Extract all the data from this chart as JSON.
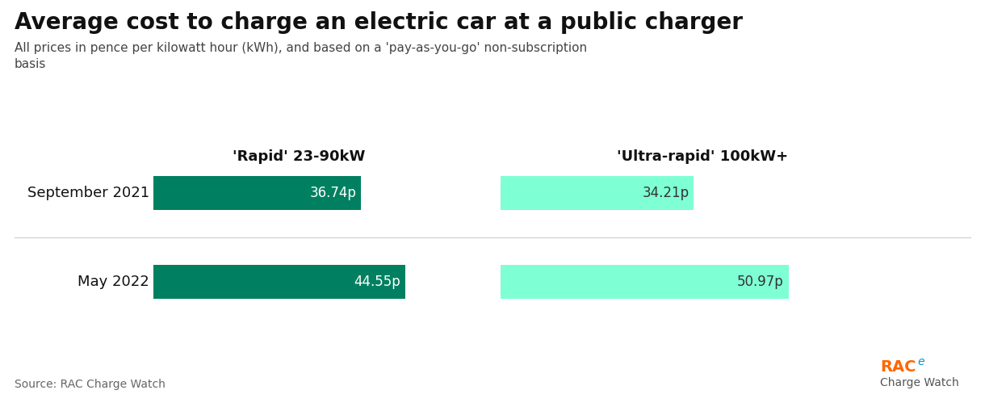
{
  "title": "Average cost to charge an electric car at a public charger",
  "subtitle": "All prices in pence per kilowatt hour (kWh), and based on a 'pay-as-you-go' non-subscription\nbasis",
  "source": "Source: RAC Charge Watch",
  "col_headers": [
    "'Rapid' 23-90kW",
    "'Ultra-rapid' 100kW+"
  ],
  "row_labels": [
    "September 2021",
    "May 2022"
  ],
  "rapid_values": [
    36.74,
    44.55
  ],
  "ultra_values": [
    34.21,
    50.97
  ],
  "rapid_color": "#008060",
  "ultra_color": "#7FFFD4",
  "bar_label_color_rapid": "#ffffff",
  "bar_label_color_ultra": "#333333",
  "background_color": "#ffffff",
  "rac_orange": "#FF6600",
  "rac_blue": "#0099CC",
  "rac_text_color": "#555555"
}
